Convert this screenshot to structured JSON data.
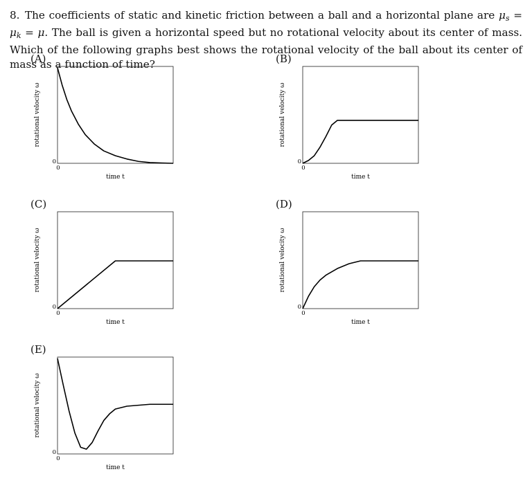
{
  "question": {
    "number": "8.",
    "text_1": "The coefficients of static and kinetic friction between a ball and a horizontal plane are ",
    "math_mu_s": "μ",
    "sub_s": "s",
    "eq1": " = ",
    "math_mu_k": "μ",
    "sub_k": "k",
    "eq2": " = ",
    "math_mu": "μ",
    "text_2": ". The ball is given a horizontal speed but no rotational velocity about its center of mass. Which of the following graphs best shows the rotational velocity of the ball about its center of mass as a function of time?"
  },
  "chart_data": [
    {
      "type": "line",
      "option": "(A)",
      "ylabel": "rotational velocity ω",
      "xlabel": "time t",
      "x_tick": "0",
      "y_tick": "0",
      "xlim": [
        0,
        1
      ],
      "ylim": [
        0,
        1
      ],
      "x": [
        0.0,
        0.04,
        0.08,
        0.12,
        0.18,
        0.24,
        0.32,
        0.4,
        0.5,
        0.6,
        0.7,
        0.8,
        0.9,
        1.0
      ],
      "y": [
        1.0,
        0.82,
        0.67,
        0.55,
        0.41,
        0.3,
        0.2,
        0.13,
        0.08,
        0.045,
        0.02,
        0.008,
        0.003,
        0.0
      ]
    },
    {
      "type": "line",
      "option": "(B)",
      "ylabel": "rotational velocity ω",
      "xlabel": "time t",
      "x_tick": "0",
      "y_tick": "0",
      "xlim": [
        0,
        1
      ],
      "ylim": [
        0,
        1
      ],
      "x": [
        0.0,
        0.05,
        0.1,
        0.15,
        0.2,
        0.25,
        0.3,
        0.4,
        0.6,
        0.8,
        1.0
      ],
      "y": [
        0.0,
        0.03,
        0.08,
        0.17,
        0.28,
        0.4,
        0.45,
        0.45,
        0.45,
        0.45,
        0.45
      ]
    },
    {
      "type": "line",
      "option": "(C)",
      "ylabel": "rotational velocity ω",
      "xlabel": "time t",
      "x_tick": "0",
      "y_tick": "0",
      "xlim": [
        0,
        1
      ],
      "ylim": [
        0,
        1
      ],
      "x": [
        0.0,
        0.5,
        0.6,
        0.8,
        1.0
      ],
      "y": [
        0.0,
        0.5,
        0.5,
        0.5,
        0.5
      ]
    },
    {
      "type": "line",
      "option": "(D)",
      "ylabel": "rotational velocity ω",
      "xlabel": "time t",
      "x_tick": "0",
      "y_tick": "0",
      "xlim": [
        0,
        1
      ],
      "ylim": [
        0,
        1
      ],
      "x": [
        0.0,
        0.05,
        0.1,
        0.15,
        0.2,
        0.3,
        0.4,
        0.5,
        0.6,
        0.7,
        0.8,
        0.9,
        1.0
      ],
      "y": [
        0.0,
        0.13,
        0.23,
        0.3,
        0.35,
        0.42,
        0.47,
        0.5,
        0.5,
        0.5,
        0.5,
        0.5,
        0.5
      ]
    },
    {
      "type": "line",
      "option": "(E)",
      "ylabel": "rotational velocity ω",
      "xlabel": "time t",
      "x_tick": "0",
      "y_tick": "0",
      "xlim": [
        0,
        1
      ],
      "ylim": [
        0,
        1
      ],
      "x": [
        0.0,
        0.05,
        0.1,
        0.15,
        0.2,
        0.25,
        0.3,
        0.35,
        0.4,
        0.45,
        0.5,
        0.6,
        0.7,
        0.8,
        0.9,
        1.0
      ],
      "y": [
        1.0,
        0.72,
        0.45,
        0.22,
        0.07,
        0.05,
        0.12,
        0.24,
        0.35,
        0.42,
        0.47,
        0.5,
        0.51,
        0.52,
        0.52,
        0.52
      ]
    }
  ]
}
